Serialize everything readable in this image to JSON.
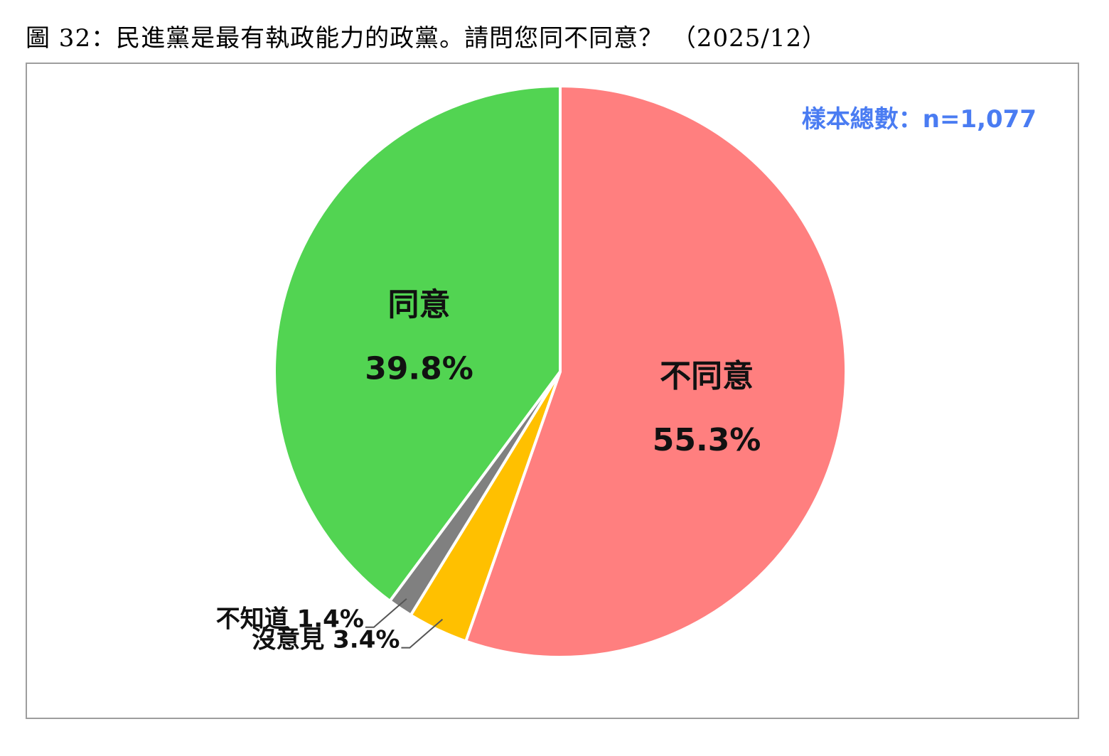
{
  "page": {
    "title": "圖 32：民進黨是最有執政能力的政黨。請問您同不同意？ （2025/12）"
  },
  "sample_size": {
    "text": "樣本總數：n=1,077",
    "color": "#4a7cf2"
  },
  "chart_data": {
    "type": "pie",
    "start_angle_deg": 0,
    "direction": "clockwise",
    "slices": [
      {
        "name": "不同意",
        "value": 55.3,
        "display": "55.3%",
        "color": "#ff7f7f",
        "label_style": "inside"
      },
      {
        "name": "沒意見",
        "value": 3.4,
        "display": "3.4%",
        "color": "#ffc000",
        "label_style": "leader"
      },
      {
        "name": "不知道",
        "value": 1.4,
        "display": "1.4%",
        "color": "#808080",
        "label_style": "leader"
      },
      {
        "name": "同意",
        "value": 39.8,
        "display": "39.8%",
        "color": "#52d452",
        "label_style": "inside"
      }
    ]
  }
}
